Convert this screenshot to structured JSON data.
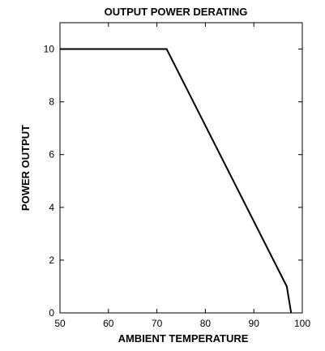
{
  "chart_data": {
    "type": "line",
    "title": "OUTPUT POWER DERATING",
    "xlabel": "AMBIENT TEMPERATURE",
    "ylabel": "POWER OUTPUT",
    "xlim": [
      50,
      100
    ],
    "ylim": [
      0,
      11
    ],
    "x_ticks": [
      50,
      60,
      70,
      80,
      90,
      100
    ],
    "y_ticks": [
      0,
      2,
      4,
      6,
      8,
      10
    ],
    "grid": false,
    "series": [
      {
        "x": [
          50,
          72,
          96.8,
          97.7
        ],
        "y": [
          10,
          10,
          1,
          0
        ]
      }
    ],
    "colors": {
      "line": "#000000",
      "axes": "#000000"
    }
  }
}
